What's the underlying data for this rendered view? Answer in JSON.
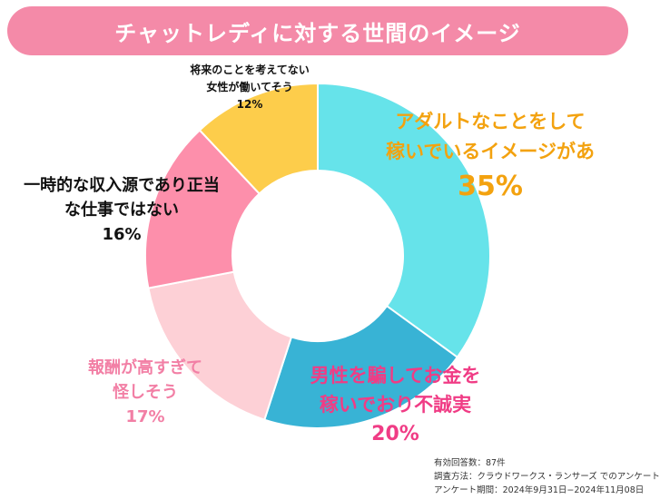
{
  "title": "チャットレディに対する世間のイメージ",
  "chart_data": {
    "type": "pie",
    "variant": "donut",
    "slices": [
      {
        "label_lines": [
          "アダルトなことをして",
          "稼いでいるイメージがあ"
        ],
        "pct_label": "35%",
        "value": 35,
        "color": "#66e3ea",
        "label_color": "#f3a20f"
      },
      {
        "label_lines": [
          "男性を騙してお金を",
          "稼いでおり不誠実"
        ],
        "pct_label": "20%",
        "value": 20,
        "color": "#38b3d5",
        "label_color": "#f03c85"
      },
      {
        "label_lines": [
          "報酬が高すぎて",
          "怪しそう"
        ],
        "pct_label": "17%",
        "value": 17,
        "color": "#fdd0d6",
        "label_color": "#f27fa5"
      },
      {
        "label_lines": [
          "一時的な収入源であり正当",
          "な仕事ではない"
        ],
        "pct_label": "16%",
        "value": 16,
        "color": "#fd8fab",
        "label_color": "#111111"
      },
      {
        "label_lines": [
          "将来のことを考えてない",
          "女性が働いてそう"
        ],
        "pct_label": "12%",
        "value": 12,
        "color": "#fdcd4b",
        "label_color": "#111111"
      }
    ]
  },
  "footer": {
    "responses": "有効回答数：87件",
    "method": "調査方法：クラウドワークス・ランサーズ でのアンケート",
    "period": "アンケート期間：2024年9月31日−2024年11月08日"
  }
}
